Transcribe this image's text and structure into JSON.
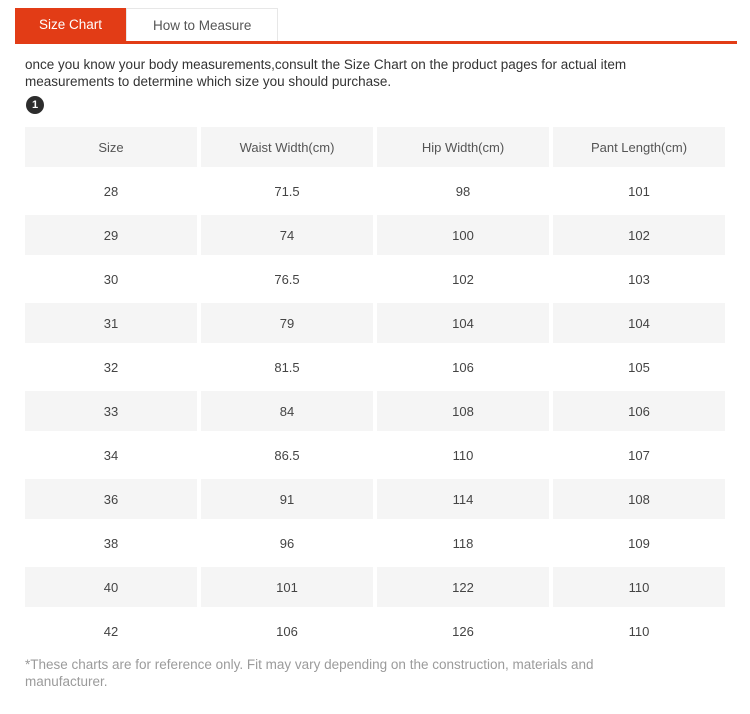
{
  "tabs": {
    "size_chart": "Size Chart",
    "how_to_measure": "How to Measure"
  },
  "intro": "once you know your body measurements,consult the Size Chart on the product pages for actual item measurements to determine which size you should purchase.",
  "badge": "1",
  "table": {
    "headers": [
      "Size",
      "Waist Width(cm)",
      "Hip Width(cm)",
      "Pant Length(cm)"
    ],
    "rows": [
      [
        "28",
        "71.5",
        "98",
        "101"
      ],
      [
        "29",
        "74",
        "100",
        "102"
      ],
      [
        "30",
        "76.5",
        "102",
        "103"
      ],
      [
        "31",
        "79",
        "104",
        "104"
      ],
      [
        "32",
        "81.5",
        "106",
        "105"
      ],
      [
        "33",
        "84",
        "108",
        "106"
      ],
      [
        "34",
        "86.5",
        "110",
        "107"
      ],
      [
        "36",
        "91",
        "114",
        "108"
      ],
      [
        "38",
        "96",
        "118",
        "109"
      ],
      [
        "40",
        "101",
        "122",
        "110"
      ],
      [
        "42",
        "106",
        "126",
        "110"
      ]
    ]
  },
  "footnote": "*These charts are for reference only. Fit may vary depending on the construction, materials and manufacturer.",
  "colors": {
    "accent": "#e23c16",
    "stripe": "#f5f5f5",
    "badge_bg": "#2d2d2d"
  }
}
